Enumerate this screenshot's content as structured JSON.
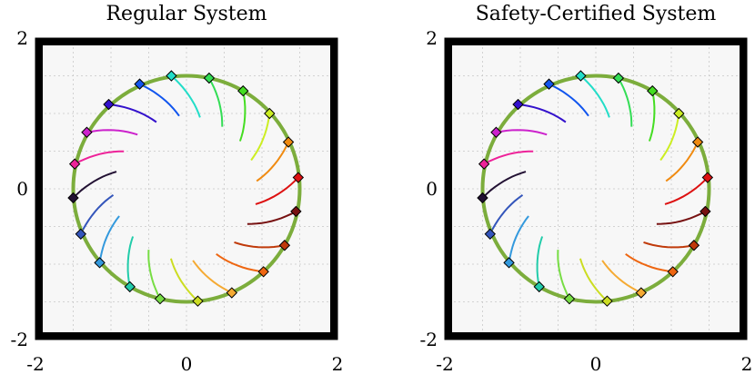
{
  "chart_data": [
    {
      "type": "scatter",
      "title": "Regular System",
      "xlabel": "",
      "ylabel": "",
      "xlim": [
        -2,
        2
      ],
      "ylim": [
        -2,
        2
      ],
      "xticks": [
        "-2",
        "0",
        "2"
      ],
      "yticks": [
        "-2",
        "0",
        "2"
      ],
      "grid": true,
      "boundary": {
        "x": [
          -2,
          2
        ],
        "y": [
          -2,
          2
        ],
        "color": "#000000"
      },
      "reference_circle": {
        "center": [
          0,
          0
        ],
        "radius": 1.5,
        "color": "#7cad3c"
      },
      "agents": [
        {
          "x": -0.2,
          "y": 1.5,
          "color": "#22ddc8",
          "trail_dir": 1
        },
        {
          "x": 0.3,
          "y": 1.47,
          "color": "#33dd55",
          "trail_dir": 1
        },
        {
          "x": 0.75,
          "y": 1.3,
          "color": "#44dd22",
          "trail_dir": 1
        },
        {
          "x": 1.1,
          "y": 1.0,
          "color": "#ccee22",
          "trail_dir": 1
        },
        {
          "x": 1.35,
          "y": 0.62,
          "color": "#f08a10",
          "trail_dir": 1
        },
        {
          "x": 1.48,
          "y": 0.15,
          "color": "#dd1111",
          "trail_dir": 1
        },
        {
          "x": 1.45,
          "y": -0.3,
          "color": "#771111",
          "trail_dir": 1
        },
        {
          "x": 1.3,
          "y": -0.75,
          "color": "#c03a0a",
          "trail_dir": 1
        },
        {
          "x": 1.02,
          "y": -1.1,
          "color": "#ee6611",
          "trail_dir": 1
        },
        {
          "x": 0.6,
          "y": -1.38,
          "color": "#f5aa33",
          "trail_dir": 1
        },
        {
          "x": 0.15,
          "y": -1.49,
          "color": "#ccdd22",
          "trail_dir": 1
        },
        {
          "x": -0.35,
          "y": -1.46,
          "color": "#77dd44",
          "trail_dir": 1
        },
        {
          "x": -0.75,
          "y": -1.3,
          "color": "#22ccaa",
          "trail_dir": 1
        },
        {
          "x": -1.15,
          "y": -0.98,
          "color": "#3399dd",
          "trail_dir": 1
        },
        {
          "x": -1.4,
          "y": -0.6,
          "color": "#3355bb",
          "trail_dir": 1
        },
        {
          "x": -1.5,
          "y": -0.12,
          "color": "#221133",
          "trail_dir": 1
        },
        {
          "x": -1.48,
          "y": 0.33,
          "color": "#ee2299",
          "trail_dir": 1
        },
        {
          "x": -1.32,
          "y": 0.75,
          "color": "#cc22cc",
          "trail_dir": 1
        },
        {
          "x": -1.03,
          "y": 1.12,
          "color": "#3311cc",
          "trail_dir": 1
        },
        {
          "x": -0.62,
          "y": 1.39,
          "color": "#1155ee",
          "trail_dir": 1
        }
      ]
    },
    {
      "type": "scatter",
      "title": "Safety-Certified System",
      "xlabel": "",
      "ylabel": "",
      "xlim": [
        -2,
        2
      ],
      "ylim": [
        -2,
        2
      ],
      "xticks": [
        "-2",
        "0",
        "2"
      ],
      "yticks": [
        "-2",
        "0",
        "2"
      ],
      "grid": true,
      "boundary": {
        "x": [
          -2,
          2
        ],
        "y": [
          -2,
          2
        ],
        "color": "#000000"
      },
      "reference_circle": {
        "center": [
          0,
          0
        ],
        "radius": 1.5,
        "color": "#7cad3c"
      },
      "agents": [
        {
          "x": -0.2,
          "y": 1.5,
          "color": "#22ddc8",
          "trail_dir": 1
        },
        {
          "x": 0.3,
          "y": 1.47,
          "color": "#33dd55",
          "trail_dir": 1
        },
        {
          "x": 0.75,
          "y": 1.3,
          "color": "#44dd22",
          "trail_dir": 1
        },
        {
          "x": 1.1,
          "y": 1.0,
          "color": "#ccee22",
          "trail_dir": 1
        },
        {
          "x": 1.35,
          "y": 0.62,
          "color": "#f08a10",
          "trail_dir": 1
        },
        {
          "x": 1.48,
          "y": 0.15,
          "color": "#dd1111",
          "trail_dir": 1
        },
        {
          "x": 1.45,
          "y": -0.3,
          "color": "#771111",
          "trail_dir": 1
        },
        {
          "x": 1.3,
          "y": -0.75,
          "color": "#c03a0a",
          "trail_dir": 1
        },
        {
          "x": 1.02,
          "y": -1.1,
          "color": "#ee6611",
          "trail_dir": 1
        },
        {
          "x": 0.6,
          "y": -1.38,
          "color": "#f5aa33",
          "trail_dir": 1
        },
        {
          "x": 0.15,
          "y": -1.49,
          "color": "#ccdd22",
          "trail_dir": 1
        },
        {
          "x": -0.35,
          "y": -1.46,
          "color": "#77dd44",
          "trail_dir": 1
        },
        {
          "x": -0.75,
          "y": -1.3,
          "color": "#22ccaa",
          "trail_dir": 1
        },
        {
          "x": -1.15,
          "y": -0.98,
          "color": "#3399dd",
          "trail_dir": 1
        },
        {
          "x": -1.4,
          "y": -0.6,
          "color": "#3355bb",
          "trail_dir": 1
        },
        {
          "x": -1.5,
          "y": -0.12,
          "color": "#221133",
          "trail_dir": 1
        },
        {
          "x": -1.48,
          "y": 0.33,
          "color": "#ee2299",
          "trail_dir": 1
        },
        {
          "x": -1.32,
          "y": 0.75,
          "color": "#cc22cc",
          "trail_dir": 1
        },
        {
          "x": -1.03,
          "y": 1.12,
          "color": "#3311cc",
          "trail_dir": 1
        },
        {
          "x": -0.62,
          "y": 1.39,
          "color": "#1155ee",
          "trail_dir": 1
        }
      ]
    }
  ]
}
